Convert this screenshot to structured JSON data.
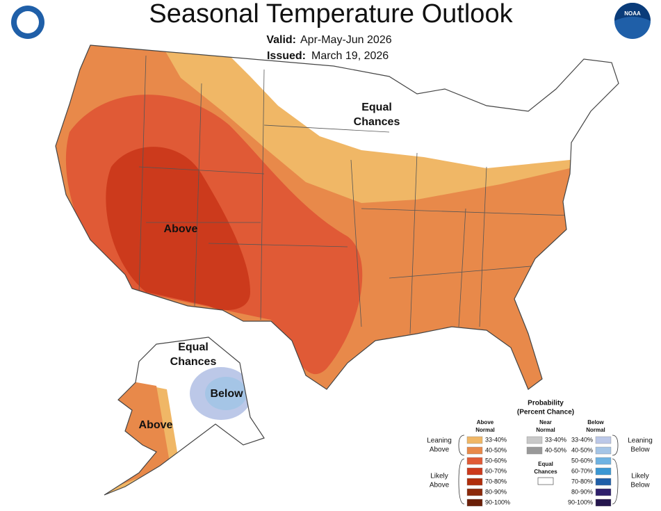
{
  "header": {
    "title": "Seasonal Temperature Outlook",
    "valid_label": "Valid:",
    "valid_value": "Apr-May-Jun 2026",
    "issued_label": "Issued:",
    "issued_value": "March 19, 2026",
    "logo_text": "NOAA"
  },
  "map_labels": {
    "us_equal": [
      "Equal",
      "Chances"
    ],
    "us_above": "Above",
    "ak_equal": [
      "Equal",
      "Chances"
    ],
    "ak_below": "Below",
    "ak_above": "Above"
  },
  "legend": {
    "title": [
      "Probability",
      "(Percent Chance)"
    ],
    "columns": [
      {
        "header": [
          "Above",
          "Normal"
        ],
        "items": [
          {
            "label": "33-40%",
            "color": "#f0b766"
          },
          {
            "label": "40-50%",
            "color": "#e8894a"
          },
          {
            "label": "50-60%",
            "color": "#e05a36"
          },
          {
            "label": "60-70%",
            "color": "#cc3a1c"
          },
          {
            "label": "70-80%",
            "color": "#b02e0c"
          },
          {
            "label": "80-90%",
            "color": "#8b2a0b"
          },
          {
            "label": "90-100%",
            "color": "#6a1f08"
          }
        ]
      },
      {
        "header": [
          "Near",
          "Normal"
        ],
        "items": [
          {
            "label": "33-40%",
            "color": "#c8c8c8"
          },
          {
            "label": "40-50%",
            "color": "#999999"
          }
        ]
      },
      {
        "header": [
          "Below",
          "Normal"
        ],
        "items": [
          {
            "label": "33-40%",
            "color": "#bcc8e8"
          },
          {
            "label": "40-50%",
            "color": "#a5c5e6"
          },
          {
            "label": "50-60%",
            "color": "#6fb3e2"
          },
          {
            "label": "60-70%",
            "color": "#3b97d3"
          },
          {
            "label": "70-80%",
            "color": "#1f5fa8"
          },
          {
            "label": "80-90%",
            "color": "#2e1f6b"
          },
          {
            "label": "90-100%",
            "color": "#24164d"
          }
        ]
      }
    ],
    "groups": [
      [
        "Leaning",
        "Above"
      ],
      [
        "Likely",
        "Above"
      ],
      [
        "Leaning",
        "Below"
      ],
      [
        "Likely",
        "Below"
      ]
    ],
    "equal_chances": [
      "Equal",
      "Chances"
    ]
  }
}
